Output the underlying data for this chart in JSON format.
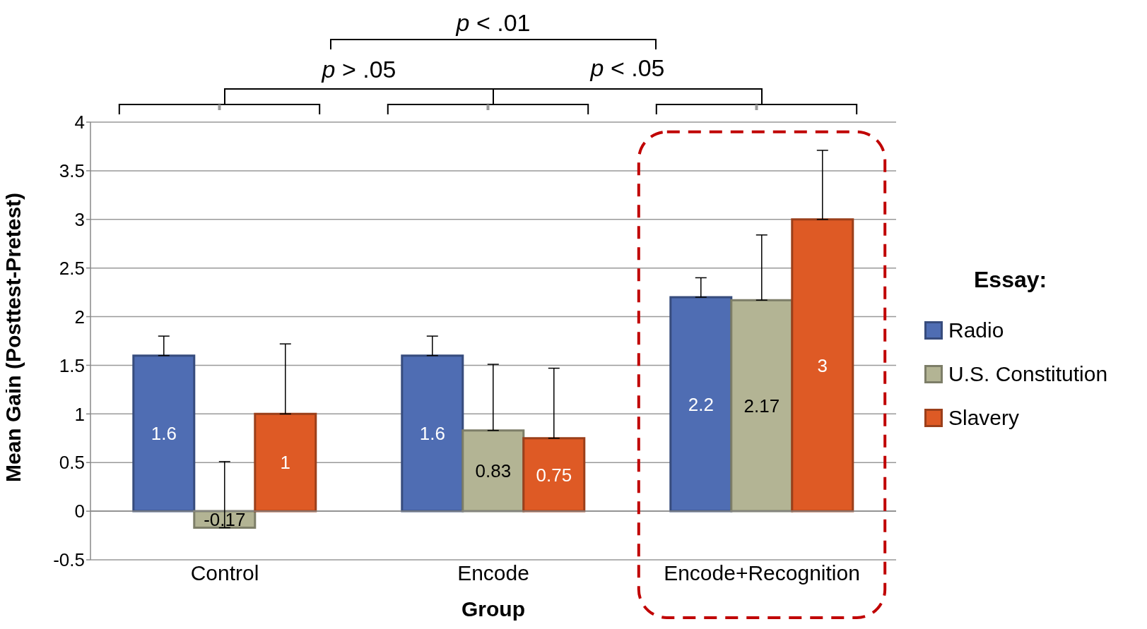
{
  "chart_data": {
    "type": "bar",
    "xlabel": "Group",
    "ylabel": "Mean Gain (Posttest-Pretest)",
    "legend_title": "Essay:",
    "categories": [
      "Control",
      "Encode",
      "Encode+Recognition"
    ],
    "series": [
      {
        "name": "Radio",
        "color": "#4f6db3",
        "values": [
          1.6,
          1.6,
          2.2
        ],
        "errors": [
          [
            1.6,
            1.8
          ],
          [
            1.6,
            1.8
          ],
          [
            2.2,
            2.4
          ]
        ]
      },
      {
        "name": "U.S. Constitution",
        "color": "#b3b494",
        "values": [
          -0.17,
          0.83,
          2.17
        ],
        "errors": [
          [
            -0.17,
            0.51
          ],
          [
            0.83,
            1.51
          ],
          [
            2.17,
            2.84
          ]
        ]
      },
      {
        "name": "Slavery",
        "color": "#de5a25",
        "values": [
          1,
          0.75,
          3
        ],
        "errors": [
          [
            1,
            1.72
          ],
          [
            0.75,
            1.47
          ],
          [
            3,
            3.71
          ]
        ]
      }
    ],
    "ylim": [
      -0.5,
      4
    ],
    "yticks": [
      -0.5,
      0,
      0.5,
      1,
      1.5,
      2,
      2.5,
      3,
      3.5,
      4
    ],
    "grid": "y",
    "legend": "right",
    "data_labels": true,
    "annotations": [
      "p < .01",
      "p > .05",
      "p < .05"
    ]
  }
}
